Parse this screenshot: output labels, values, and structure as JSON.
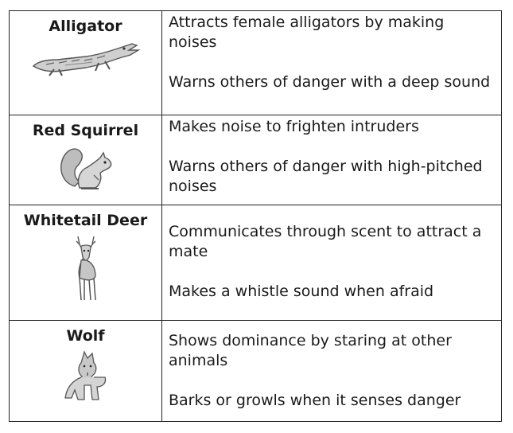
{
  "animals": [
    {
      "name": "Alligator",
      "image": "alligator-illustration",
      "facts": [
        "Attracts female alligators by making noises",
        "Warns others of danger with a deep sound"
      ]
    },
    {
      "name": "Red Squirrel",
      "image": "squirrel-illustration",
      "facts": [
        "Makes noise to frighten intruders",
        "Warns others of danger with high-pitched noises"
      ]
    },
    {
      "name": "Whitetail Deer",
      "image": "deer-illustration",
      "facts": [
        "Communicates through scent to attract a mate",
        "Makes a whistle sound when afraid"
      ]
    },
    {
      "name": "Wolf",
      "image": "wolf-illustration",
      "facts": [
        "Shows dominance by staring at other animals",
        "Barks or growls when it senses danger"
      ]
    }
  ]
}
